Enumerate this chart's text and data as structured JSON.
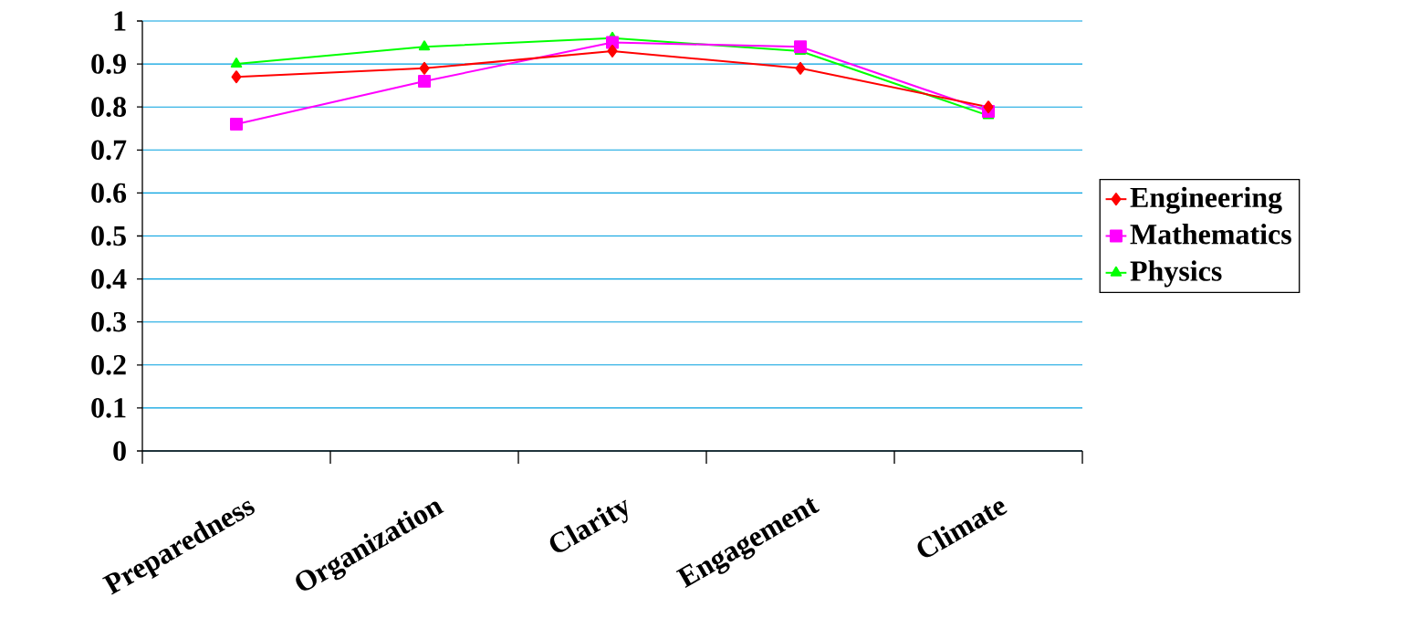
{
  "chart_data": {
    "type": "line",
    "categories": [
      "Preparedness",
      "Organization",
      "Clarity",
      "Engagement",
      "Climate"
    ],
    "series": [
      {
        "name": "Engineering",
        "color": "#ff0000",
        "marker": "diamond",
        "values": [
          0.87,
          0.89,
          0.93,
          0.89,
          0.8
        ]
      },
      {
        "name": "Mathematics",
        "color": "#ff00ff",
        "marker": "square",
        "values": [
          0.76,
          0.86,
          0.95,
          0.94,
          0.79
        ]
      },
      {
        "name": "Physics",
        "color": "#00ff00",
        "marker": "triangle",
        "values": [
          0.9,
          0.94,
          0.96,
          0.93,
          0.78
        ]
      }
    ],
    "ylim": [
      0,
      1
    ],
    "yticks": [
      0,
      0.1,
      0.2,
      0.3,
      0.4,
      0.5,
      0.6,
      0.7,
      0.8,
      0.9,
      1
    ],
    "grid": "y",
    "legend": "right",
    "line_style": "solid"
  }
}
